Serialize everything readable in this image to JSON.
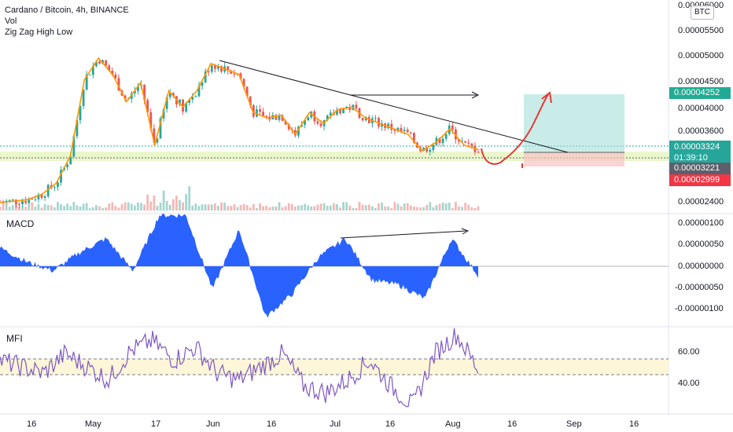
{
  "legend": {
    "symbol_line": "Cardano / Bitcoin, 4h, BINANCE",
    "vol": "Vol",
    "zigzag": "Zig Zag High Low"
  },
  "currency_button": "BTC",
  "price_axis": [
    "0.00006000",
    "0.00005500",
    "0.00005000",
    "0.00004500",
    "0.00004000",
    "0.00003600",
    "0.00002400"
  ],
  "price_tags": {
    "target": "0.00004252",
    "last": "0.00003324",
    "countdown": "01:39:10",
    "entry": "0.00003221",
    "stop": "0.00002999"
  },
  "macd": {
    "title": "MACD",
    "axis": [
      "0.00000100",
      "0.00000050",
      "0.00000000",
      "-0.00000050",
      "-0.00000100"
    ]
  },
  "mfi": {
    "title": "MFI",
    "axis": [
      "60.00",
      "40.00"
    ]
  },
  "time_axis": [
    "16",
    "May",
    "17",
    "Jun",
    "16",
    "Jul",
    "16",
    "Aug",
    "16",
    "Sep",
    "16"
  ],
  "colors": {
    "up": "#26a69a",
    "down": "#ef5350",
    "macd": "#2962ff",
    "mfi": "#7e57c2",
    "zigzag": "#ff9800",
    "annotation": "#e53935"
  },
  "chart_data": [
    {
      "type": "candlestick",
      "title": "Cardano / Bitcoin, 4h, BINANCE",
      "x": [
        "Apr 16",
        "May",
        "May 17",
        "Jun",
        "Jun 16",
        "Jul",
        "Jul 16",
        "Aug",
        "Aug 16",
        "Sep",
        "Sep 16"
      ],
      "close_path": [
        [
          "Apr 10",
          2.35e-05
        ],
        [
          "Apr 20",
          2.37e-05
        ],
        [
          "Apr 28",
          2.4e-05
        ],
        [
          "May 3",
          2.5e-05
        ],
        [
          "May 7",
          2.7e-05
        ],
        [
          "May 10",
          3.2e-05
        ],
        [
          "May 12",
          4.6e-05
        ],
        [
          "May 14",
          5e-05
        ],
        [
          "May 16",
          4.7e-05
        ],
        [
          "May 18",
          4.2e-05
        ],
        [
          "May 20",
          4.55e-05
        ],
        [
          "May 22",
          3.4e-05
        ],
        [
          "May 25",
          4.4e-05
        ],
        [
          "May 28",
          4.1e-05
        ],
        [
          "May 31",
          4.4e-05
        ],
        [
          "Jun 2",
          4.9e-05
        ],
        [
          "Jun 6",
          4.8e-05
        ],
        [
          "Jun 10",
          4.7e-05
        ],
        [
          "Jun 13",
          4e-05
        ],
        [
          "Jun 17",
          3.9e-05
        ],
        [
          "Jun 21",
          3.95e-05
        ],
        [
          "Jun 24",
          3.6e-05
        ],
        [
          "Jun 27",
          4e-05
        ],
        [
          "Jul 1",
          3.8e-05
        ],
        [
          "Jul 5",
          4.05e-05
        ],
        [
          "Jul 9",
          4.1e-05
        ],
        [
          "Jul 12",
          3.9e-05
        ],
        [
          "Jul 16",
          3.8e-05
        ],
        [
          "Jul 20",
          3.7e-05
        ],
        [
          "Jul 24",
          3.6e-05
        ],
        [
          "Jul 27",
          3.3e-05
        ],
        [
          "Jul 30",
          3.45e-05
        ],
        [
          "Aug 2",
          3.7e-05
        ],
        [
          "Aug 5",
          3.4e-05
        ],
        [
          "Aug 7",
          3.32e-05
        ]
      ],
      "price_tags": {
        "target": 4.252e-05,
        "last": 3.324e-05,
        "entry": 3.221e-05,
        "stop": 2.999e-05
      },
      "trendline": [
        [
          "May 31",
          5.02e-05
        ],
        [
          "Aug 19",
          3.25e-05
        ]
      ],
      "horizontal_arrow_level": 4.25e-05,
      "support_zone": [
        3.2e-05,
        3.32e-05
      ]
    },
    {
      "type": "bar",
      "title": "MACD",
      "ylim": [
        -1.2e-06,
        1.1e-06
      ],
      "series": [
        {
          "values": [
            4e-07,
            1e-07,
            -1e-07,
            3e-07,
            6e-07,
            -1e-07,
            1.1e-06,
            1.1e-06,
            -5e-07,
            8e-07,
            -1.1e-06,
            -6e-07,
            2e-07,
            6e-07,
            -3e-07,
            -4e-07,
            -7e-07,
            6e-07,
            -2e-07
          ]
        }
      ]
    },
    {
      "type": "line",
      "title": "MFI",
      "ylim": [
        20,
        80
      ],
      "band": [
        45,
        55
      ],
      "series": [
        {
          "values": [
            55,
            50,
            45,
            60,
            50,
            40,
            62,
            70,
            55,
            65,
            45,
            40,
            50,
            60,
            35,
            30,
            40,
            55,
            35,
            20,
            60,
            75,
            48
          ]
        }
      ]
    }
  ]
}
